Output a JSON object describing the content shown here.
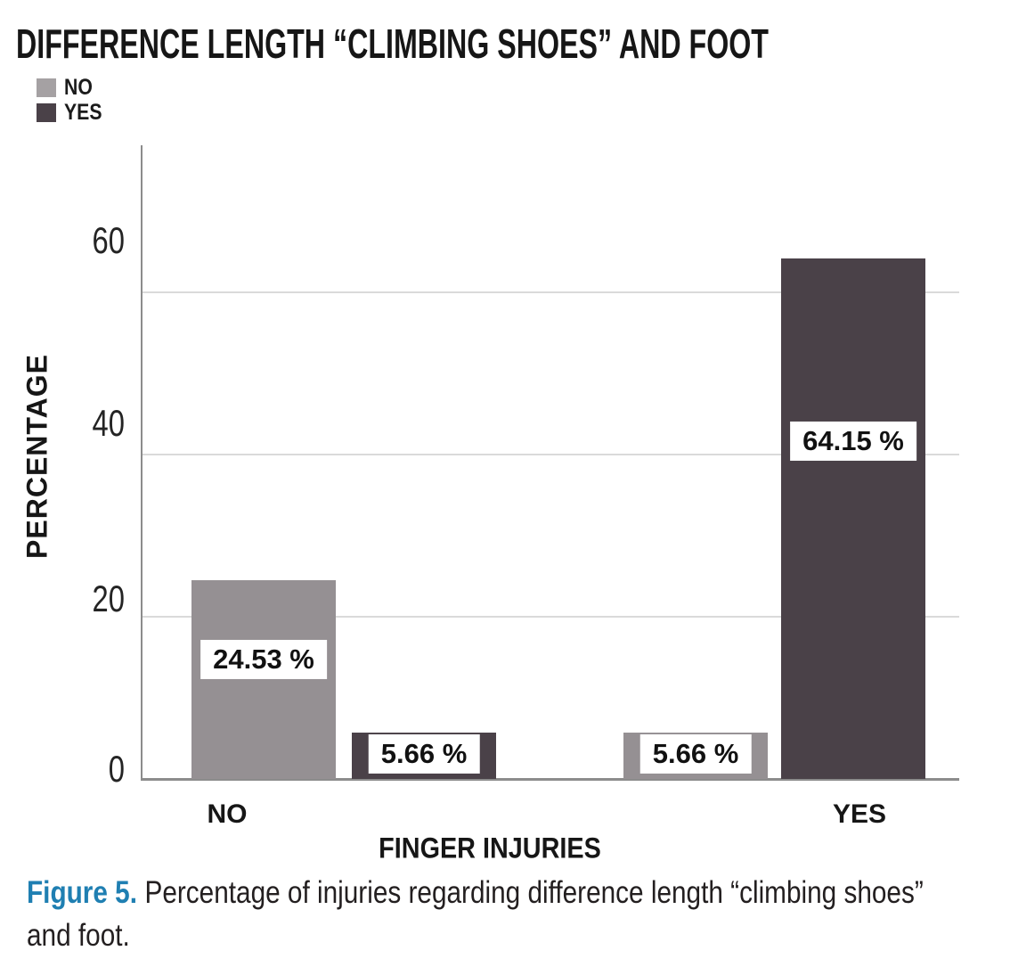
{
  "figure": {
    "caption_label": "Figure 5.",
    "caption_text": "Percentage of injuries regarding difference length “climbing shoes” and foot.",
    "caption_accent_color": "#1f7fb2"
  },
  "legend": {
    "items": [
      {
        "label": "NO",
        "color": "#a5a1a3"
      },
      {
        "label": "YES",
        "color": "#4a4148"
      }
    ]
  },
  "chart_data": {
    "type": "bar",
    "title": "DIFFERENCE LENGTH “CLIMBING SHOES” AND FOOT",
    "xlabel": "FINGER INJURIES",
    "ylabel": "PERCENTAGE",
    "categories": [
      "NO",
      "YES"
    ],
    "series": [
      {
        "name": "NO",
        "color": "#959093",
        "values": [
          24.53,
          5.66
        ]
      },
      {
        "name": "YES",
        "color": "#4a4148",
        "values": [
          5.66,
          64.15
        ]
      }
    ],
    "value_label_suffix": " %",
    "yticks": [
      0,
      20,
      40,
      60
    ],
    "ylim": [
      0,
      78
    ],
    "grid": true,
    "legend_position": "top-left",
    "axis_color": "#8c8c8c",
    "grid_color": "#dadada"
  }
}
